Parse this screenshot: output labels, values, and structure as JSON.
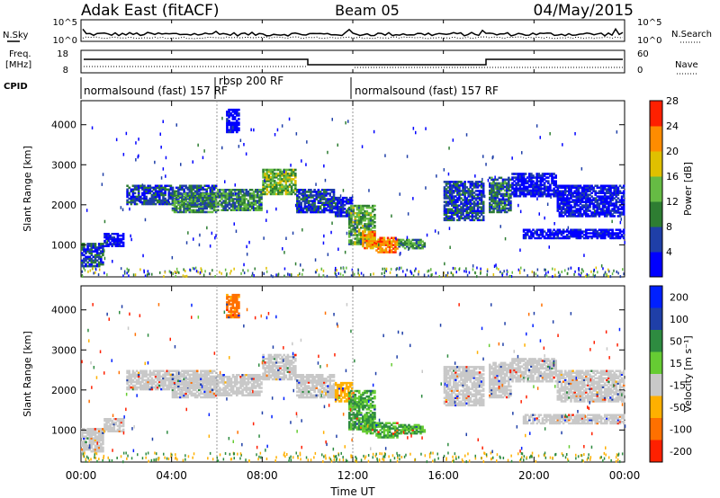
{
  "header": {
    "station": "Adak East (fitACF)",
    "beam": "Beam 05",
    "date": "04/May/2015"
  },
  "noise_panel": {
    "left_label": "N.Sky",
    "left_ticks": [
      "10^5",
      "10^0"
    ],
    "right_label": "N.Search",
    "right_ticks": [
      "10^5",
      "10^0"
    ]
  },
  "freq_panel": {
    "left_label_1": "Freq.",
    "left_label_2": "[MHz]",
    "left_ticks": [
      "18",
      "8"
    ],
    "right_label": "Nave",
    "right_ticks": [
      "60",
      "0"
    ]
  },
  "cpid_panel": {
    "label": "CPID",
    "modes": [
      "normalsound (fast) 157 RF",
      "rbsp 200 RF",
      "normalsound (fast) 157 RF"
    ]
  },
  "x_axis": {
    "title": "Time UT",
    "ticks": [
      "00:00",
      "04:00",
      "08:00",
      "12:00",
      "16:00",
      "20:00",
      "00:00"
    ]
  },
  "chart_data": [
    {
      "type": "heatmap",
      "quantity": "Power",
      "ylabel": "Slant Range [km]",
      "colorbar_label": "Power [dB]",
      "colorbar_ticks": [
        4,
        8,
        12,
        16,
        20,
        24,
        28
      ],
      "colorbar_colors": [
        "#0000ff",
        "#1f3fa8",
        "#2e7d32",
        "#66bb44",
        "#e0c000",
        "#ff8c00",
        "#ff2000"
      ],
      "y_ticks": [
        1000,
        2000,
        3000,
        4000
      ],
      "ylim": [
        200,
        4600
      ],
      "xlim_hours": [
        0,
        24
      ],
      "echo_bands": [
        {
          "t0": 0.0,
          "t1": 1.0,
          "r0": 450,
          "r1": 1050,
          "power": 10
        },
        {
          "t0": 1.0,
          "t1": 1.9,
          "r0": 950,
          "r1": 1300,
          "power": 5
        },
        {
          "t0": 2.0,
          "t1": 6.0,
          "r0": 2000,
          "r1": 2500,
          "power": 10
        },
        {
          "t0": 4.0,
          "t1": 6.0,
          "r0": 1800,
          "r1": 2300,
          "power": 14
        },
        {
          "t0": 6.0,
          "t1": 8.0,
          "r0": 1850,
          "r1": 2400,
          "power": 14
        },
        {
          "t0": 8.0,
          "t1": 9.5,
          "r0": 2250,
          "r1": 2900,
          "power": 18
        },
        {
          "t0": 9.5,
          "t1": 11.2,
          "r0": 1800,
          "r1": 2400,
          "power": 10
        },
        {
          "t0": 11.2,
          "t1": 12.0,
          "r0": 1700,
          "r1": 2200,
          "power": 8
        },
        {
          "t0": 11.8,
          "t1": 13.0,
          "r0": 1000,
          "r1": 2000,
          "power": 16
        },
        {
          "t0": 12.4,
          "t1": 13.0,
          "r0": 900,
          "r1": 1350,
          "power": 25
        },
        {
          "t0": 13.0,
          "t1": 14.0,
          "r0": 800,
          "r1": 1200,
          "power": 26
        },
        {
          "t0": 14.0,
          "t1": 15.2,
          "r0": 900,
          "r1": 1150,
          "power": 15
        },
        {
          "t0": 16.0,
          "t1": 17.8,
          "r0": 1600,
          "r1": 2600,
          "power": 10
        },
        {
          "t0": 18.0,
          "t1": 19.0,
          "r0": 1800,
          "r1": 2700,
          "power": 12
        },
        {
          "t0": 19.0,
          "t1": 21.0,
          "r0": 2200,
          "r1": 2800,
          "power": 6
        },
        {
          "t0": 19.5,
          "t1": 24.0,
          "r0": 1150,
          "r1": 1400,
          "power": 5
        },
        {
          "t0": 21.0,
          "t1": 24.0,
          "r0": 1700,
          "r1": 2500,
          "power": 6
        },
        {
          "t0": 6.4,
          "t1": 7.0,
          "r0": 3800,
          "r1": 4400,
          "power": 4
        }
      ]
    },
    {
      "type": "heatmap",
      "quantity": "Velocity",
      "ylabel": "Slant Range [km]",
      "colorbar_label": "Velocity [m s⁻¹]",
      "colorbar_ticks": [
        200,
        100,
        50,
        15,
        -15,
        -50,
        -100,
        -200
      ],
      "colorbar_colors": [
        "#0020ff",
        "#1f3fa8",
        "#2e8b40",
        "#66cc33",
        "#c8c8c8",
        "#ffb000",
        "#ff7000",
        "#ff2000"
      ],
      "y_ticks": [
        1000,
        2000,
        3000,
        4000
      ],
      "ylim": [
        200,
        4600
      ],
      "xlim_hours": [
        0,
        24
      ],
      "echo_bands": [
        {
          "t0": 0.0,
          "t1": 1.0,
          "r0": 450,
          "r1": 1050,
          "velocity": 0
        },
        {
          "t0": 1.0,
          "t1": 1.9,
          "r0": 950,
          "r1": 1300,
          "velocity": 0
        },
        {
          "t0": 2.0,
          "t1": 6.0,
          "r0": 2000,
          "r1": 2500,
          "velocity": 0
        },
        {
          "t0": 4.0,
          "t1": 6.0,
          "r0": 1800,
          "r1": 2300,
          "velocity": 0
        },
        {
          "t0": 6.0,
          "t1": 8.0,
          "r0": 1850,
          "r1": 2400,
          "velocity": 0
        },
        {
          "t0": 8.0,
          "t1": 9.5,
          "r0": 2250,
          "r1": 2900,
          "velocity": 0
        },
        {
          "t0": 9.5,
          "t1": 11.2,
          "r0": 1800,
          "r1": 2400,
          "velocity": 0
        },
        {
          "t0": 11.2,
          "t1": 12.0,
          "r0": 1700,
          "r1": 2200,
          "velocity": -30
        },
        {
          "t0": 11.8,
          "t1": 13.0,
          "r0": 1000,
          "r1": 2000,
          "velocity": 30
        },
        {
          "t0": 12.4,
          "t1": 13.0,
          "r0": 900,
          "r1": 1350,
          "velocity": 30
        },
        {
          "t0": 13.0,
          "t1": 14.0,
          "r0": 800,
          "r1": 1200,
          "velocity": 30
        },
        {
          "t0": 14.0,
          "t1": 15.2,
          "r0": 900,
          "r1": 1150,
          "velocity": 30
        },
        {
          "t0": 16.0,
          "t1": 17.8,
          "r0": 1600,
          "r1": 2600,
          "velocity": 0
        },
        {
          "t0": 18.0,
          "t1": 19.0,
          "r0": 1800,
          "r1": 2700,
          "velocity": 0
        },
        {
          "t0": 19.0,
          "t1": 21.0,
          "r0": 2200,
          "r1": 2800,
          "velocity": 0
        },
        {
          "t0": 19.5,
          "t1": 24.0,
          "r0": 1150,
          "r1": 1400,
          "velocity": 0
        },
        {
          "t0": 21.0,
          "t1": 24.0,
          "r0": 1700,
          "r1": 2500,
          "velocity": 0
        },
        {
          "t0": 6.4,
          "t1": 7.0,
          "r0": 3800,
          "r1": 4400,
          "velocity": -60
        }
      ]
    }
  ]
}
